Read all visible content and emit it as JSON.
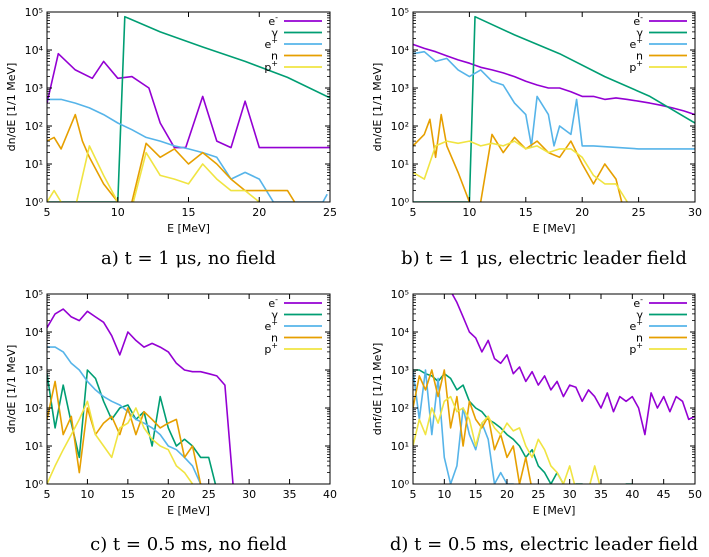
{
  "colors": {
    "e-": "#9400d3",
    "gamma": "#009e73",
    "e+": "#56b4e9",
    "n": "#e69f00",
    "p+": "#f0e442"
  },
  "legend": [
    {
      "key": "e-",
      "label": "e",
      "sup": "-"
    },
    {
      "key": "gamma",
      "label": "γ",
      "sup": ""
    },
    {
      "key": "e+",
      "label": "e",
      "sup": "+"
    },
    {
      "key": "n",
      "label": "n",
      "sup": ""
    },
    {
      "key": "p+",
      "label": "p",
      "sup": "+"
    }
  ],
  "chart_data": [
    {
      "id": "a",
      "type": "line",
      "caption": "a) t = 1 μs, no field",
      "xlabel": "E [MeV]",
      "ylabel": "dn/dE [1/1 MeV]",
      "xlim": [
        5,
        25
      ],
      "xticks": [
        5,
        10,
        15,
        20,
        25
      ],
      "ylim_log10": [
        0,
        5
      ],
      "yticks": [
        "10⁰",
        "10¹",
        "10²",
        "10³",
        "10⁴",
        "10⁵"
      ],
      "series": [
        {
          "name": "e-",
          "x": [
            5,
            5.8,
            7,
            8.2,
            9,
            10,
            11,
            12.2,
            13,
            14,
            14.8,
            16,
            17,
            18,
            19,
            20,
            21,
            22,
            23,
            24,
            25
          ],
          "y": [
            400,
            8000,
            3000,
            1800,
            5000,
            1800,
            2000,
            1000,
            120,
            27,
            27,
            600,
            40,
            27,
            450,
            27,
            27,
            27,
            27,
            27,
            27
          ]
        },
        {
          "name": "gamma",
          "x": [
            5,
            9.5,
            10,
            10.5,
            13,
            16,
            19,
            22,
            25
          ],
          "y": [
            1,
            1,
            1,
            75000,
            30000,
            12000,
            5000,
            1900,
            550
          ]
        },
        {
          "name": "e+",
          "x": [
            5,
            6,
            7,
            8,
            9,
            10,
            11,
            12,
            13,
            14,
            15,
            16,
            17,
            18,
            19,
            20,
            21,
            22,
            23,
            24.5,
            24.8
          ],
          "y": [
            500,
            500,
            400,
            300,
            200,
            120,
            80,
            50,
            40,
            30,
            25,
            20,
            15,
            4,
            6,
            4,
            1,
            1,
            1,
            1,
            1.6
          ]
        },
        {
          "name": "n",
          "x": [
            5,
            5.5,
            6,
            7,
            7.5,
            8,
            9,
            10,
            10.5,
            11,
            12,
            13,
            14,
            15,
            16,
            17,
            18,
            19,
            20,
            21,
            22,
            22.5
          ],
          "y": [
            40,
            50,
            25,
            200,
            40,
            15,
            3,
            1,
            0.5,
            1,
            35,
            15,
            25,
            10,
            20,
            10,
            4,
            2,
            2,
            2,
            2,
            1
          ]
        },
        {
          "name": "p+",
          "x": [
            5,
            5.5,
            6,
            7,
            8,
            9,
            10,
            11,
            12,
            13,
            14,
            15,
            16,
            17,
            18,
            19,
            20
          ],
          "y": [
            1,
            2,
            1,
            0.5,
            30,
            5,
            1,
            0.5,
            20,
            5,
            4,
            3,
            10,
            4,
            2,
            2,
            1
          ]
        }
      ]
    },
    {
      "id": "b",
      "type": "line",
      "caption": "b) t = 1 μs, electric leader field",
      "xlabel": "E [MeV]",
      "ylabel": "dn/dE [1/1 MeV]",
      "xlim": [
        5,
        30
      ],
      "xticks": [
        5,
        10,
        15,
        20,
        25,
        30
      ],
      "ylim_log10": [
        0,
        5
      ],
      "yticks": [
        "10⁰",
        "10¹",
        "10²",
        "10³",
        "10⁴",
        "10⁵"
      ],
      "series": [
        {
          "name": "e-",
          "x": [
            5,
            6,
            7,
            8,
            9,
            10,
            11,
            12,
            13,
            14,
            15,
            16,
            17,
            18,
            19,
            20,
            21,
            22,
            23,
            24,
            25,
            26,
            27,
            28,
            29,
            30
          ],
          "y": [
            14000,
            11000,
            9000,
            7000,
            5500,
            4500,
            3500,
            3000,
            2500,
            2000,
            1500,
            1200,
            1000,
            1000,
            800,
            600,
            600,
            500,
            550,
            500,
            450,
            400,
            350,
            300,
            250,
            200
          ]
        },
        {
          "name": "gamma",
          "x": [
            5,
            9.5,
            10,
            10.5,
            14,
            18,
            22,
            26,
            30
          ],
          "y": [
            1,
            1,
            1,
            75000,
            25000,
            8000,
            2000,
            600,
            120
          ]
        },
        {
          "name": "e+",
          "x": [
            5,
            6,
            7,
            8,
            9,
            10,
            11,
            12,
            13,
            14,
            15,
            15.5,
            16,
            17,
            17.5,
            18,
            19,
            19.5,
            20,
            21,
            25,
            30
          ],
          "y": [
            8000,
            9000,
            5000,
            6000,
            3000,
            2000,
            3000,
            1500,
            1200,
            400,
            200,
            30,
            600,
            200,
            30,
            100,
            60,
            500,
            30,
            30,
            25,
            25
          ]
        },
        {
          "name": "n",
          "x": [
            5,
            6,
            6.5,
            7,
            7.5,
            8,
            9,
            10,
            10.5,
            11,
            12,
            13,
            14,
            15,
            16,
            17,
            18,
            19,
            20,
            21,
            22,
            23,
            23.5
          ],
          "y": [
            30,
            60,
            150,
            15,
            200,
            30,
            6,
            1,
            0.5,
            1,
            60,
            20,
            50,
            25,
            40,
            20,
            15,
            40,
            10,
            3,
            10,
            4,
            1
          ]
        },
        {
          "name": "p+",
          "x": [
            5,
            6,
            7,
            8,
            9,
            10,
            11,
            12,
            13,
            14,
            15,
            16,
            17,
            18,
            19,
            20,
            21,
            22,
            23,
            24
          ],
          "y": [
            6,
            4,
            30,
            40,
            35,
            40,
            30,
            35,
            30,
            40,
            25,
            30,
            20,
            25,
            25,
            15,
            5,
            3,
            3,
            1
          ]
        }
      ]
    },
    {
      "id": "c",
      "type": "line",
      "caption": "c) t = 0.5 ms, no field",
      "xlabel": "E [MeV]",
      "ylabel": "dn/dE [1/1 MeV]",
      "xlim": [
        5,
        40
      ],
      "xticks": [
        5,
        10,
        15,
        20,
        25,
        30,
        35,
        40
      ],
      "ylim_log10": [
        0,
        5
      ],
      "yticks": [
        "10⁰",
        "10¹",
        "10²",
        "10³",
        "10⁴",
        "10⁵"
      ],
      "series": [
        {
          "name": "e-",
          "x": [
            5,
            6,
            7,
            8,
            9,
            10,
            11,
            12,
            13,
            14,
            15,
            16,
            17,
            18,
            19,
            20,
            21,
            22,
            23,
            24,
            25,
            26,
            27,
            28,
            28.5
          ],
          "y": [
            13000,
            30000,
            40000,
            25000,
            20000,
            35000,
            25000,
            18000,
            8000,
            2500,
            10000,
            6000,
            4000,
            5000,
            4000,
            3000,
            1500,
            1000,
            900,
            900,
            800,
            700,
            400,
            1,
            0.5
          ]
        },
        {
          "name": "gamma",
          "x": [
            5,
            6,
            7,
            8,
            9,
            10,
            11,
            12,
            13,
            14,
            15,
            16,
            17,
            18,
            19,
            20,
            21,
            22,
            23,
            24,
            25,
            26
          ],
          "y": [
            800,
            30,
            400,
            40,
            5,
            1000,
            600,
            150,
            50,
            100,
            120,
            50,
            80,
            10,
            200,
            30,
            10,
            15,
            10,
            5,
            5,
            0.5
          ]
        },
        {
          "name": "e+",
          "x": [
            5,
            6,
            7,
            8,
            9,
            10,
            11,
            12,
            13,
            14,
            15,
            16,
            17,
            18,
            19,
            20,
            21,
            22,
            23,
            24,
            25
          ],
          "y": [
            4000,
            4000,
            3000,
            1500,
            1000,
            500,
            300,
            200,
            150,
            120,
            80,
            50,
            40,
            30,
            20,
            10,
            8,
            5,
            3,
            1,
            0.5
          ]
        },
        {
          "name": "n",
          "x": [
            5,
            6,
            7,
            8,
            9,
            10,
            11,
            12,
            13,
            14,
            15,
            16,
            17,
            18,
            19,
            20,
            21,
            22,
            23,
            24
          ],
          "y": [
            50,
            500,
            20,
            60,
            2,
            100,
            20,
            40,
            60,
            20,
            100,
            20,
            80,
            50,
            30,
            40,
            50,
            5,
            10,
            1
          ]
        },
        {
          "name": "p+",
          "x": [
            5,
            6,
            7,
            8,
            9,
            10,
            11,
            12,
            13,
            14,
            15,
            16,
            17,
            18,
            19,
            20,
            21,
            22,
            23,
            24
          ],
          "y": [
            1,
            3,
            8,
            20,
            50,
            150,
            20,
            10,
            5,
            30,
            40,
            100,
            30,
            15,
            10,
            8,
            3,
            2,
            1,
            0.5
          ]
        }
      ]
    },
    {
      "id": "d",
      "type": "line",
      "caption": "d) t = 0.5 ms, electric leader field",
      "xlabel": "E [MeV]",
      "ylabel": "dnf/dE [1/1 MeV]",
      "xlim": [
        5,
        50
      ],
      "xticks": [
        5,
        10,
        15,
        20,
        25,
        30,
        35,
        40,
        45,
        50
      ],
      "ylim_log10": [
        0,
        5
      ],
      "yticks": [
        "10⁰",
        "10¹",
        "10²",
        "10³",
        "10⁴",
        "10⁵"
      ],
      "series": [
        {
          "name": "e-",
          "x": [
            10,
            11,
            12,
            13,
            14,
            15,
            16,
            17,
            18,
            19,
            20,
            21,
            22,
            23,
            24,
            25,
            26,
            27,
            28,
            29,
            30,
            31,
            32,
            33,
            34,
            35,
            36,
            37,
            38,
            39,
            40,
            41,
            42,
            43,
            44,
            45,
            46,
            47,
            48,
            49,
            50
          ],
          "y": [
            100000,
            120000,
            60000,
            25000,
            10000,
            7000,
            3000,
            6000,
            2000,
            1500,
            2500,
            800,
            1200,
            500,
            900,
            400,
            700,
            300,
            500,
            200,
            400,
            350,
            150,
            300,
            200,
            100,
            250,
            80,
            200,
            150,
            200,
            100,
            20,
            250,
            100,
            200,
            80,
            200,
            150,
            50,
            60
          ]
        },
        {
          "name": "gamma",
          "x": [
            5,
            6,
            7,
            8,
            9,
            10,
            11,
            12,
            13,
            14,
            15,
            16,
            17,
            18,
            19,
            20,
            21,
            22,
            23,
            24,
            25,
            26,
            27,
            28,
            29,
            30,
            31,
            32,
            33,
            34,
            35,
            36,
            37,
            38,
            39,
            40,
            41
          ],
          "y": [
            1000,
            1000,
            800,
            700,
            500,
            800,
            600,
            300,
            400,
            150,
            100,
            80,
            50,
            40,
            30,
            20,
            15,
            10,
            5,
            8,
            3,
            2,
            1,
            2,
            1,
            0.5,
            1,
            1,
            0.5,
            0.5,
            0.5,
            0.5,
            0.5,
            0.5,
            1,
            1,
            0.5
          ]
        },
        {
          "name": "e+",
          "x": [
            5,
            6,
            7,
            8,
            9,
            10,
            11,
            12,
            13,
            14,
            15,
            16,
            17,
            18,
            19,
            20,
            21,
            22
          ],
          "y": [
            1000,
            50,
            1000,
            20,
            600,
            5,
            1,
            3,
            100,
            20,
            8,
            40,
            15,
            1,
            2,
            1,
            1,
            0.5
          ]
        },
        {
          "name": "n",
          "x": [
            5,
            6,
            7,
            8,
            9,
            10,
            11,
            12,
            13,
            14,
            15,
            16,
            17,
            18,
            19,
            20,
            21,
            22,
            23,
            24
          ],
          "y": [
            100,
            700,
            300,
            1000,
            200,
            1000,
            30,
            200,
            10,
            150,
            50,
            30,
            60,
            8,
            20,
            5,
            10,
            1,
            5,
            0.5
          ]
        },
        {
          "name": "p+",
          "x": [
            5,
            6,
            7,
            8,
            9,
            10,
            11,
            12,
            13,
            14,
            15,
            16,
            17,
            18,
            19,
            20,
            21,
            22,
            23,
            24,
            25,
            26,
            27,
            28,
            29,
            30,
            31,
            32,
            33,
            34,
            35,
            36,
            37,
            38,
            39,
            40
          ],
          "y": [
            10,
            50,
            20,
            100,
            40,
            150,
            200,
            80,
            100,
            50,
            10,
            40,
            60,
            30,
            20,
            40,
            25,
            30,
            10,
            5,
            15,
            8,
            3,
            2,
            1,
            3,
            0.5,
            0.5,
            0.5,
            3,
            0.5,
            0.5,
            0.5,
            0.5,
            0.5,
            0.5
          ]
        }
      ]
    }
  ]
}
